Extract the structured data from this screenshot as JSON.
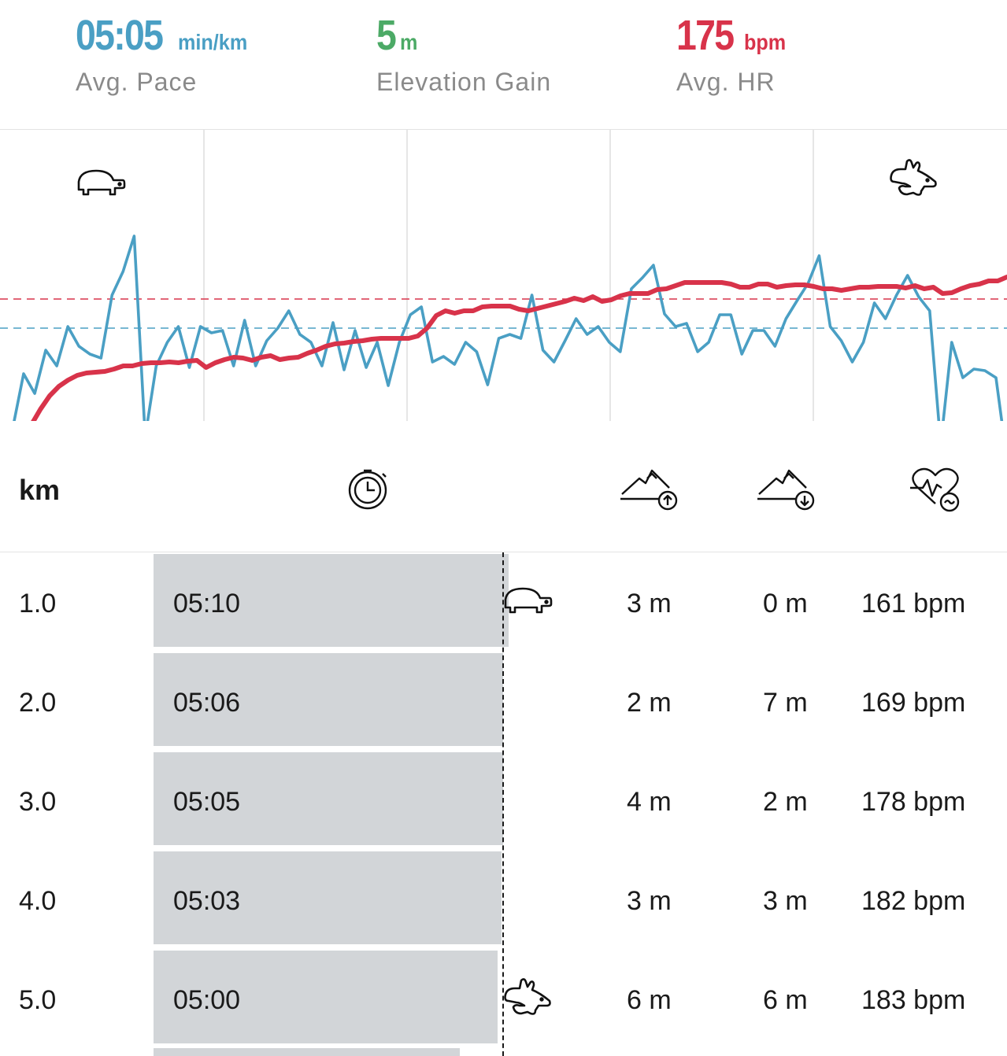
{
  "stats": {
    "pace": {
      "value": "05:05",
      "unit": "min/km",
      "label": "Avg. Pace",
      "color": "#4a9fc4"
    },
    "elevation": {
      "value": "5",
      "unit": "m",
      "label": "Elevation Gain",
      "color": "#4caa66"
    },
    "hr": {
      "value": "175",
      "unit": "bpm",
      "label": "Avg. HR",
      "color": "#d8334a"
    }
  },
  "chart_data": {
    "type": "line",
    "grid": "vertical",
    "series": [
      {
        "color": "#d8334a",
        "values": [
          -30,
          -5,
          15,
          32,
          44,
          52,
          58,
          61,
          62,
          63,
          66,
          70,
          70,
          73,
          74,
          74,
          75,
          74,
          76,
          77,
          68,
          74,
          78,
          81,
          80,
          77,
          81,
          83,
          78,
          80,
          81,
          86,
          90,
          95,
          98,
          99,
          101,
          102,
          104,
          105,
          105,
          105,
          105,
          108,
          118,
          134,
          140,
          137,
          140,
          140,
          145,
          146,
          146,
          146,
          142,
          140,
          143,
          146,
          149,
          152,
          156,
          153,
          158,
          152,
          154,
          159,
          162,
          162,
          162,
          167,
          168,
          172,
          176,
          176,
          176,
          176,
          176,
          174,
          170,
          170,
          174,
          174,
          170,
          172,
          173,
          173,
          171,
          168,
          168,
          166,
          168,
          170,
          170,
          171,
          171,
          171,
          169,
          172,
          168,
          170,
          162,
          163,
          168,
          172,
          174,
          178,
          178,
          183
        ]
      },
      {
        "color": "#4a9fc4",
        "values": [
          -10,
          60,
          35,
          90,
          70,
          120,
          95,
          85,
          80,
          160,
          190,
          235,
          -20,
          70,
          100,
          120,
          68,
          120,
          112,
          115,
          70,
          128,
          70,
          102,
          118,
          140,
          110,
          100,
          70,
          125,
          65,
          115,
          68,
          100,
          45,
          100,
          135,
          145,
          75,
          82,
          72,
          100,
          88,
          46,
          105,
          110,
          105,
          160,
          90,
          75,
          102,
          130,
          110,
          120,
          100,
          88,
          168,
          182,
          198,
          136,
          120,
          124,
          88,
          100,
          135,
          135,
          85,
          115,
          115,
          95,
          130,
          153,
          175,
          210,
          120,
          102,
          75,
          100,
          150,
          130,
          160,
          185,
          158,
          140,
          -30,
          100,
          55,
          66,
          64,
          55,
          -50
        ]
      }
    ],
    "reference_lines": [
      {
        "color": "#d8334a",
        "value": 155
      },
      {
        "color": "#4a9fc4",
        "value": 118
      }
    ]
  },
  "table": {
    "header": {
      "km_label": "km",
      "icons": [
        "stopwatch-icon",
        "elevation-up-icon",
        "elevation-down-icon",
        "heart-rate-icon"
      ]
    },
    "rows": [
      {
        "km": "1.0",
        "pace": "05:10",
        "bar_fraction": 1.0,
        "up": "3 m",
        "down": "0 m",
        "hr": "161 bpm",
        "marker": "turtle"
      },
      {
        "km": "2.0",
        "pace": "05:06",
        "bar_fraction": 0.9955,
        "up": "2 m",
        "down": "7 m",
        "hr": "169 bpm",
        "marker": ""
      },
      {
        "km": "3.0",
        "pace": "05:05",
        "bar_fraction": 0.9955,
        "up": "4 m",
        "down": "2 m",
        "hr": "178 bpm",
        "marker": ""
      },
      {
        "km": "4.0",
        "pace": "05:03",
        "bar_fraction": 0.991,
        "up": "3 m",
        "down": "3 m",
        "hr": "182 bpm",
        "marker": ""
      },
      {
        "km": "5.0",
        "pace": "05:00",
        "bar_fraction": 0.982,
        "up": "6 m",
        "down": "6 m",
        "hr": "183 bpm",
        "marker": "rabbit"
      }
    ],
    "partial_row_bar_fraction": 0.8676
  }
}
